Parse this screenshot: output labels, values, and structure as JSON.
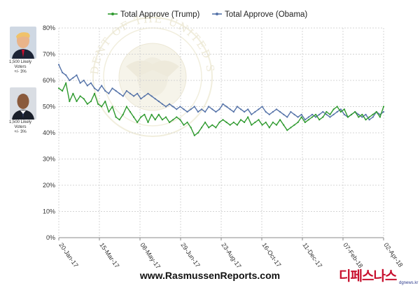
{
  "chart_data": {
    "type": "line",
    "title": "",
    "xlabel": "",
    "ylabel": "",
    "ylim": [
      0,
      80
    ],
    "y_ticks": [
      "0%",
      "10%",
      "20%",
      "30%",
      "40%",
      "50%",
      "60%",
      "70%",
      "80%"
    ],
    "x_ticks": [
      "20-Jan-17",
      "15-Mar-17",
      "08-May-17",
      "29-Jun-17",
      "23-Aug-17",
      "16-Oct-17",
      "11-Dec-17",
      "07-Feb-18",
      "02-Apr-18"
    ],
    "grid": true,
    "legend_position": "top",
    "series": [
      {
        "name": "Total Approve (Trump)",
        "color": "#2e9a2e",
        "marker": "circle",
        "values": [
          57,
          56,
          59,
          52,
          55,
          52,
          54,
          53,
          51,
          52,
          55,
          51,
          50,
          52,
          48,
          50,
          46,
          45,
          47,
          50,
          48,
          46,
          44,
          46,
          47,
          44,
          47,
          45,
          47,
          45,
          46,
          44,
          45,
          46,
          45,
          43,
          44,
          42,
          39,
          40,
          42,
          44,
          42,
          43,
          42,
          44,
          45,
          44,
          43,
          44,
          43,
          45,
          44,
          46,
          43,
          44,
          45,
          43,
          44,
          42,
          44,
          43,
          45,
          43,
          41,
          42,
          43,
          44,
          46,
          44,
          45,
          46,
          47,
          45,
          46,
          48,
          47,
          49,
          50,
          48,
          49,
          46,
          47,
          48,
          46,
          47,
          45,
          46,
          47,
          48,
          46,
          50
        ]
      },
      {
        "name": "Total Approve (Obama)",
        "color": "#5472a8",
        "marker": "circle",
        "values": [
          66,
          63,
          62,
          60,
          61,
          62,
          59,
          60,
          58,
          59,
          57,
          56,
          58,
          56,
          55,
          57,
          56,
          55,
          54,
          56,
          55,
          54,
          55,
          53,
          54,
          55,
          54,
          53,
          52,
          51,
          50,
          51,
          50,
          49,
          50,
          49,
          48,
          49,
          50,
          48,
          49,
          48,
          50,
          49,
          48,
          49,
          51,
          50,
          49,
          48,
          50,
          49,
          48,
          49,
          47,
          48,
          49,
          50,
          48,
          47,
          48,
          49,
          48,
          47,
          46,
          48,
          47,
          46,
          47,
          45,
          46,
          47,
          46,
          47,
          48,
          47,
          46,
          47,
          48,
          49,
          47,
          46,
          47,
          48,
          47,
          46,
          47,
          45,
          46,
          48,
          47,
          48
        ]
      }
    ]
  },
  "sidebar": {
    "trump_note": [
      "1,500 Likely",
      "Voters",
      "+/- 3%"
    ],
    "obama_note": [
      "1,500 Likely",
      "Voters",
      "+/- 3%"
    ]
  },
  "watermark_text": "PRESIDENT OF THE UNITED STATES",
  "footer": {
    "site": "www.RasmussenReports.com"
  },
  "logo": {
    "text": "디페스나스",
    "sub": "dgnews.kr"
  }
}
